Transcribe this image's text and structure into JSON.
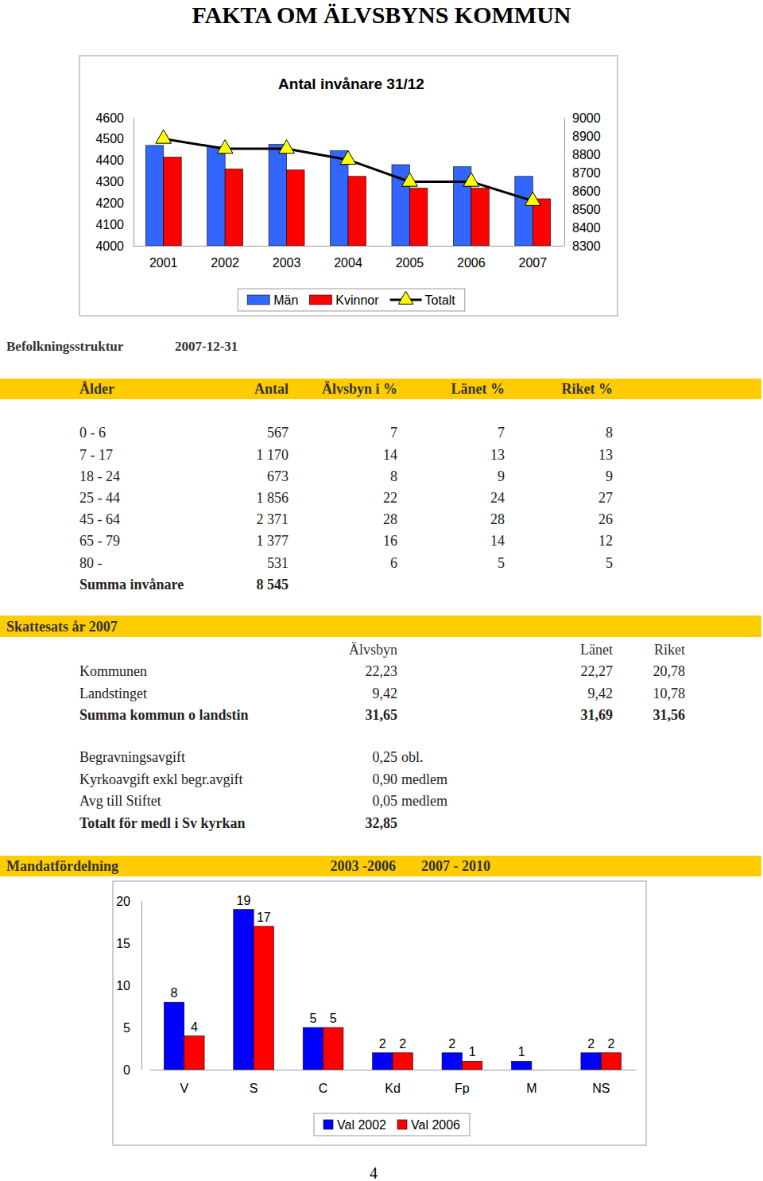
{
  "title": "FAKTA OM ÄLVSBYNS KOMMUN",
  "chart_data": [
    {
      "type": "bar",
      "title": "Antal invånare 31/12",
      "categories": [
        "2001",
        "2002",
        "2003",
        "2004",
        "2005",
        "2006",
        "2007"
      ],
      "series": [
        {
          "name": "Män",
          "color": "#3366FF",
          "values": [
            4470,
            4465,
            4475,
            4445,
            4380,
            4370,
            4325
          ]
        },
        {
          "name": "Kvinnor",
          "color": "#FF0000",
          "values": [
            4415,
            4360,
            4355,
            4325,
            4270,
            4270,
            4220
          ]
        },
        {
          "name": "Totalt",
          "type": "line",
          "axis": "y2",
          "color": "#000000",
          "marker": "triangle",
          "values": [
            8885,
            8830,
            8830,
            8770,
            8650,
            8650,
            8545
          ]
        }
      ],
      "ylim": [
        4000,
        4600
      ],
      "yticks": [
        4000,
        4100,
        4200,
        4300,
        4400,
        4500,
        4600
      ],
      "y2lim": [
        8300,
        9000
      ],
      "y2ticks": [
        8300,
        8400,
        8500,
        8600,
        8700,
        8800,
        8900,
        9000
      ],
      "grid": false,
      "legend": "bottom"
    },
    {
      "type": "bar",
      "categories": [
        "V",
        "S",
        "C",
        "Kd",
        "Fp",
        "M",
        "NS"
      ],
      "series": [
        {
          "name": "Val 2002",
          "color": "#0000FF",
          "values": [
            8,
            19,
            5,
            2,
            2,
            1,
            2
          ]
        },
        {
          "name": "Val 2006",
          "color": "#FF0000",
          "values": [
            4,
            17,
            5,
            2,
            1,
            null,
            2
          ]
        }
      ],
      "ylim": [
        0,
        20
      ],
      "yticks": [
        0,
        5,
        10,
        15,
        20
      ],
      "grid": false,
      "legend": "bottom",
      "data_labels": true
    }
  ],
  "population": {
    "heading": "Befolkningsstruktur",
    "date": "2007-12-31",
    "columns": [
      "Ålder",
      "Antal",
      "Älvsbyn i %",
      "Länet %",
      "Riket %"
    ],
    "rows": [
      [
        "0 - 6",
        "567",
        "7",
        "7",
        "8"
      ],
      [
        "7 - 17",
        "1 170",
        "14",
        "13",
        "13"
      ],
      [
        "18 - 24",
        "673",
        "8",
        "9",
        "9"
      ],
      [
        "25 - 44",
        "1 856",
        "22",
        "24",
        "27"
      ],
      [
        "45 - 64",
        "2 371",
        "28",
        "28",
        "26"
      ],
      [
        "65 - 79",
        "1 377",
        "16",
        "14",
        "12"
      ],
      [
        "80 -",
        "531",
        "6",
        "5",
        "5"
      ]
    ],
    "total": [
      "Summa invånare",
      "8 545"
    ]
  },
  "tax": {
    "heading": "Skattesats år 2007",
    "columns": [
      "Älvsbyn",
      "Länet",
      "Riket"
    ],
    "rows": [
      [
        "Kommunen",
        "22,23",
        "22,27",
        "20,78"
      ],
      [
        "Landstinget",
        "9,42",
        "9,42",
        "10,78"
      ],
      [
        "Summa kommun o landstin",
        "31,65",
        "31,69",
        "31,56"
      ]
    ],
    "fees": [
      [
        "Begravningsavgift",
        "0,25",
        "obl."
      ],
      [
        "Kyrkoavgift exkl begr.avgift",
        "0,90",
        "medlem"
      ],
      [
        "Avg till Stiftet",
        "0,05",
        "medlem"
      ]
    ],
    "fees_total": [
      "Totalt för medl i Sv kyrkan",
      "32,85"
    ]
  },
  "mandates": {
    "heading": "Mandatfördelning",
    "periods": [
      "2003 -2006",
      "2007 - 2010"
    ]
  },
  "page_number": "4"
}
